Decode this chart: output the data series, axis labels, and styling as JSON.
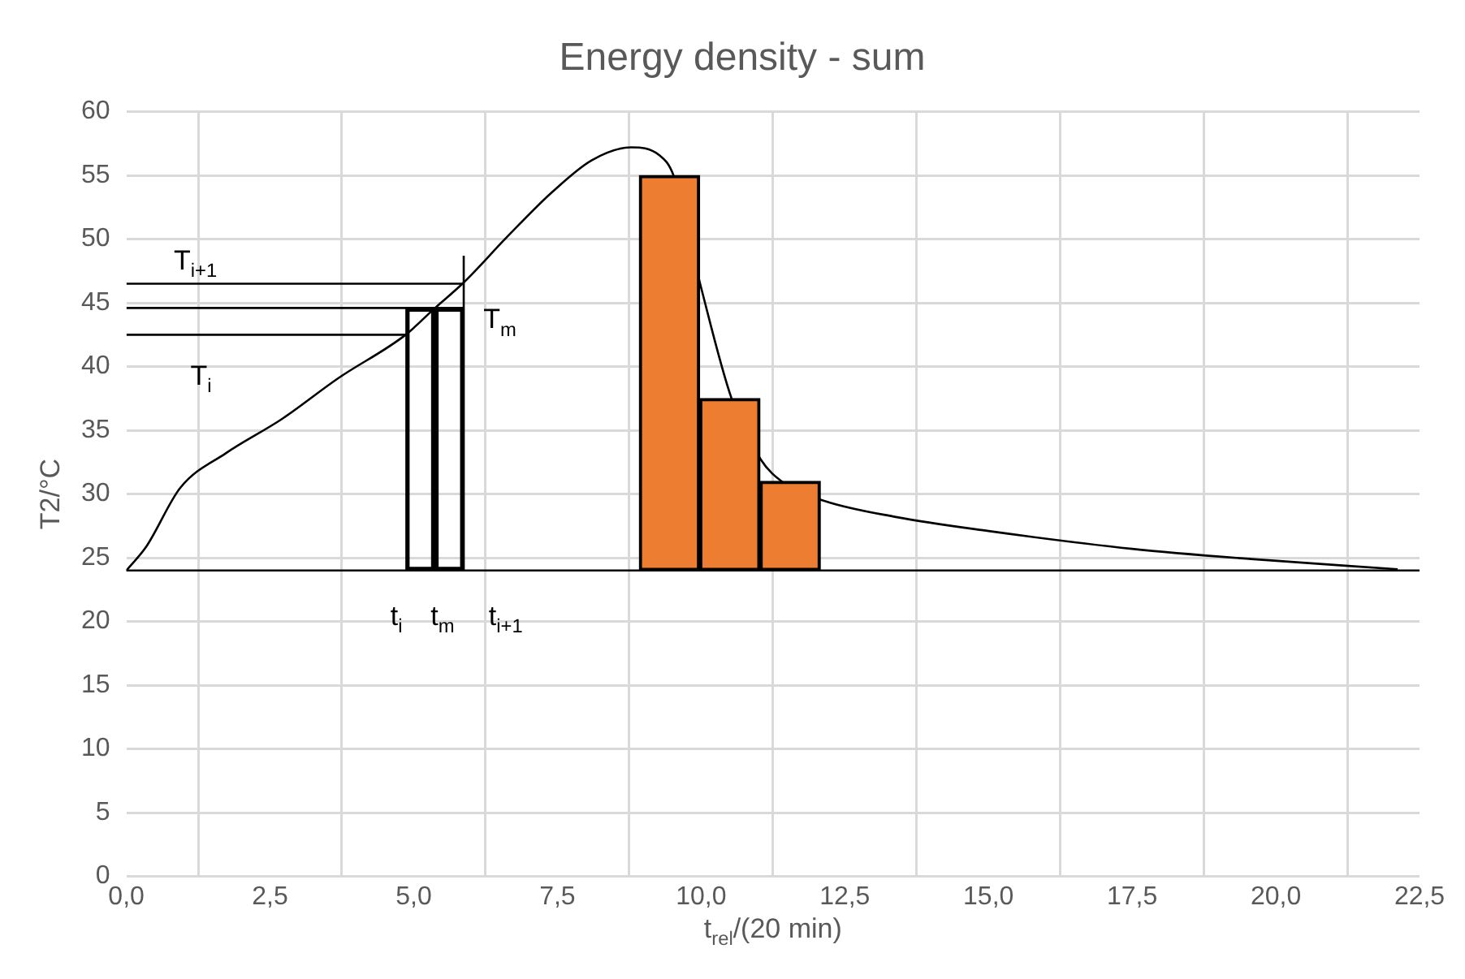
{
  "chart_data": {
    "type": "line",
    "title": "Energy density - sum",
    "xlabel": "t$_{rel}$/(20 min)",
    "ylabel": "T2/°C",
    "xlim": [
      0,
      22.5
    ],
    "xticks": [
      {
        "value": 0,
        "label": "0,0"
      },
      {
        "value": 2.5,
        "label": "2,5"
      },
      {
        "value": 5,
        "label": "5,0"
      },
      {
        "value": 7.5,
        "label": "7,5"
      },
      {
        "value": 10,
        "label": "10,0"
      },
      {
        "value": 12.5,
        "label": "12,5"
      },
      {
        "value": 15,
        "label": "15,0"
      },
      {
        "value": 17.5,
        "label": "17,5"
      },
      {
        "value": 20,
        "label": "20,0"
      },
      {
        "value": 22.5,
        "label": "22,5"
      }
    ],
    "ylim": [
      0,
      60
    ],
    "yticks": [
      0,
      5,
      10,
      15,
      20,
      25,
      30,
      35,
      40,
      45,
      50,
      55,
      60
    ],
    "grid": true,
    "legend": false,
    "marker": "none",
    "series": [
      {
        "type": "bar",
        "color": "#000000",
        "x": [
          5.115,
          5.62
        ],
        "base": [
          24,
          24
        ],
        "values": [
          20.6,
          20.6
        ]
      },
      {
        "color": "#000000",
        "x": [
          0,
          0.35,
          0.94,
          1.73,
          2.71,
          3.69,
          4.86,
          5.37,
          5.87,
          6.63,
          7.41,
          8.1,
          8.78,
          9.27,
          9.52,
          10.0,
          10.53,
          11.04,
          11.43,
          12.12,
          13.39,
          15.0,
          17.5,
          19.57,
          22.12
        ],
        "values": [
          24,
          25.9,
          30.5,
          33.2,
          35.9,
          39.1,
          42.5,
          44.6,
          46.6,
          50.2,
          53.7,
          56.2,
          57.2,
          56.6,
          55,
          46.2,
          37.5,
          32.7,
          30.9,
          29.5,
          28.2,
          27.1,
          25.7,
          24.9,
          24.1
        ]
      },
      {
        "type": "bar",
        "color": "#ed7d31",
        "x": [
          9.45,
          10.5,
          11.55
        ],
        "base": [
          24,
          24,
          24
        ],
        "values": [
          31,
          13.5,
          7
        ]
      },
      {
        "type": "line",
        "color": "#000000",
        "x": [
          0,
          5.87
        ],
        "values": [
          46.5,
          46.5
        ]
      },
      {
        "type": "line",
        "color": "#000000",
        "x": [
          0,
          5.87
        ],
        "values": [
          44.6,
          44.6
        ]
      },
      {
        "type": "line",
        "color": "#000000",
        "x": [
          0,
          4.86
        ],
        "values": [
          42.5,
          42.5
        ]
      },
      {
        "type": "line",
        "color": "#000000",
        "x": [
          5.87,
          5.87
        ],
        "values": [
          24,
          48.7
        ]
      }
    ],
    "ref_lines": [
      {
        "axis": "y",
        "value": 24,
        "color": "#000000"
      }
    ],
    "annotations": [
      "T$_{i+1}$",
      "T$_{m}$",
      "T$_{i}$",
      "t$_{i}$",
      "t$_{m}$",
      "t$_{i+1}$"
    ]
  }
}
